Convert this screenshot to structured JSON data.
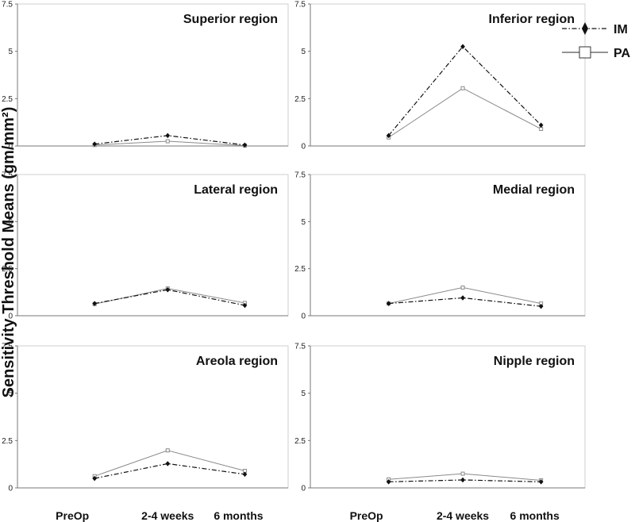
{
  "chart_data": {
    "type": "line",
    "ylabel": "Sensitivity Threshold Means (gm/mm²)",
    "categories": [
      "PreOp",
      "2-4 weeks",
      "6 months"
    ],
    "ylim": [
      0,
      7.5
    ],
    "yticks": [
      "0",
      "2.5",
      "5",
      "7.5"
    ],
    "legend": {
      "position": "top-right",
      "items": [
        {
          "name": "IM",
          "marker": "diamond-filled",
          "style": "dash-dot",
          "color": "#111111"
        },
        {
          "name": "PA",
          "marker": "square-open",
          "style": "solid",
          "color": "#8a8a8a"
        }
      ]
    },
    "panels": [
      {
        "title": "Superior region",
        "series": [
          {
            "name": "IM",
            "values": [
              0.1,
              0.55,
              0.05
            ]
          },
          {
            "name": "PA",
            "values": [
              0.05,
              0.25,
              0.02
            ]
          }
        ]
      },
      {
        "title": "Inferior region",
        "series": [
          {
            "name": "IM",
            "values": [
              0.55,
              5.25,
              1.1
            ]
          },
          {
            "name": "PA",
            "values": [
              0.45,
              3.05,
              0.9
            ]
          }
        ]
      },
      {
        "title": "Lateral region",
        "series": [
          {
            "name": "IM",
            "values": [
              0.65,
              1.38,
              0.55
            ]
          },
          {
            "name": "PA",
            "values": [
              0.62,
              1.45,
              0.68
            ]
          }
        ]
      },
      {
        "title": "Medial region",
        "series": [
          {
            "name": "IM",
            "values": [
              0.65,
              0.95,
              0.5
            ]
          },
          {
            "name": "PA",
            "values": [
              0.65,
              1.5,
              0.65
            ]
          }
        ]
      },
      {
        "title": "Areola region",
        "series": [
          {
            "name": "IM",
            "values": [
              0.5,
              1.28,
              0.72
            ]
          },
          {
            "name": "PA",
            "values": [
              0.62,
              1.98,
              0.9
            ]
          }
        ]
      },
      {
        "title": "Nipple region",
        "series": [
          {
            "name": "IM",
            "values": [
              0.32,
              0.42,
              0.32
            ]
          },
          {
            "name": "PA",
            "values": [
              0.45,
              0.75,
              0.4
            ]
          }
        ]
      }
    ]
  }
}
